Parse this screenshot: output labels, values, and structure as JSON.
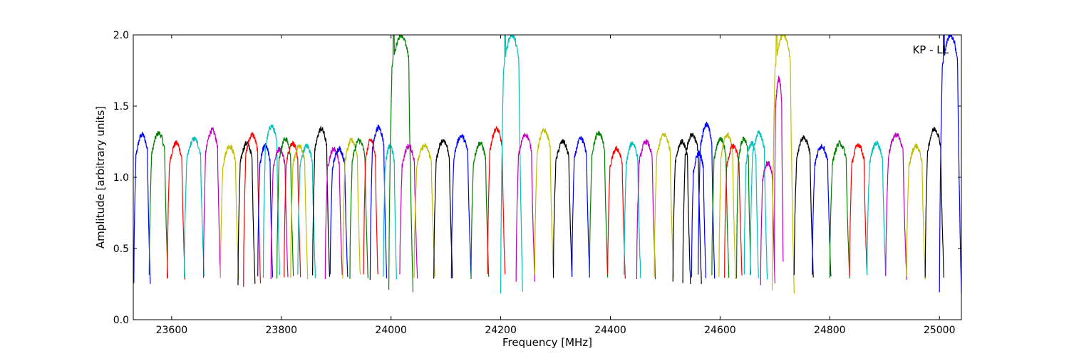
{
  "chart_data": {
    "type": "line",
    "title": "",
    "xlabel": "Frequency [MHz]",
    "ylabel": "Amplitude [arbitrary units]",
    "xlim": [
      23530,
      25040
    ],
    "ylim": [
      0.0,
      2.0
    ],
    "x_ticks": [
      23600,
      23800,
      24000,
      24200,
      24400,
      24600,
      24800,
      25000
    ],
    "x_tick_labels": [
      "23600",
      "23800",
      "24000",
      "24200",
      "24400",
      "24600",
      "24800",
      "25000"
    ],
    "y_ticks": [
      0.0,
      0.5,
      1.0,
      1.5,
      2.0
    ],
    "y_tick_labels": [
      "0.0",
      "0.5",
      "1.0",
      "1.5",
      "2.0"
    ],
    "grid": false,
    "annotation": "KP - LL",
    "colors": [
      "#0000ff",
      "#008000",
      "#ff0000",
      "#00bfbf",
      "#bf00bf",
      "#bfbf00",
      "#000000"
    ],
    "series": [
      {
        "x0": 23531,
        "x1": 23561,
        "peak": 1.3,
        "min": 0.25,
        "color": "#0000ff"
      },
      {
        "x0": 23559,
        "x1": 23593,
        "peak": 1.31,
        "min": 0.3,
        "color": "#008000"
      },
      {
        "x0": 23592,
        "x1": 23624,
        "peak": 1.24,
        "min": 0.3,
        "color": "#ff0000"
      },
      {
        "x0": 23623,
        "x1": 23659,
        "peak": 1.27,
        "min": 0.3,
        "color": "#00bfbf"
      },
      {
        "x0": 23658,
        "x1": 23689,
        "peak": 1.33,
        "min": 0.3,
        "color": "#bf00bf"
      },
      {
        "x0": 23689,
        "x1": 23722,
        "peak": 1.22,
        "min": 0.28,
        "color": "#bfbf00"
      },
      {
        "x0": 23721,
        "x1": 23752,
        "peak": 1.24,
        "min": 0.25,
        "color": "#000000"
      },
      {
        "x0": 23731,
        "x1": 23762,
        "peak": 1.3,
        "min": 0.25,
        "color": "#ff0000"
      },
      {
        "x0": 23757,
        "x1": 23784,
        "peak": 1.22,
        "min": 0.3,
        "color": "#0000ff"
      },
      {
        "x0": 23767,
        "x1": 23797,
        "peak": 1.36,
        "min": 0.3,
        "color": "#00bfbf"
      },
      {
        "x0": 23781,
        "x1": 23812,
        "peak": 1.2,
        "min": 0.3,
        "color": "#bf00bf"
      },
      {
        "x0": 23792,
        "x1": 23822,
        "peak": 1.27,
        "min": 0.3,
        "color": "#008000"
      },
      {
        "x0": 23805,
        "x1": 23835,
        "peak": 1.24,
        "min": 0.3,
        "color": "#ff0000"
      },
      {
        "x0": 23817,
        "x1": 23848,
        "peak": 1.22,
        "min": 0.3,
        "color": "#bfbf00"
      },
      {
        "x0": 23830,
        "x1": 23862,
        "peak": 1.22,
        "min": 0.3,
        "color": "#00bfbf"
      },
      {
        "x0": 23857,
        "x1": 23888,
        "peak": 1.34,
        "min": 0.3,
        "color": "#000000"
      },
      {
        "x0": 23880,
        "x1": 23911,
        "peak": 1.2,
        "min": 0.3,
        "color": "#bf00bf"
      },
      {
        "x0": 23889,
        "x1": 23921,
        "peak": 1.2,
        "min": 0.3,
        "color": "#0000ff"
      },
      {
        "x0": 23912,
        "x1": 23944,
        "peak": 1.26,
        "min": 0.3,
        "color": "#bfbf00"
      },
      {
        "x0": 23925,
        "x1": 23958,
        "peak": 1.26,
        "min": 0.3,
        "color": "#008000"
      },
      {
        "x0": 23950,
        "x1": 23976,
        "peak": 1.26,
        "min": 0.3,
        "color": "#ff0000"
      },
      {
        "x0": 23962,
        "x1": 23992,
        "peak": 1.35,
        "min": 0.3,
        "color": "#0000ff"
      },
      {
        "x0": 23986,
        "x1": 24010,
        "peak": 1.22,
        "min": 0.3,
        "color": "#00bfbf"
      },
      {
        "x0": 23996,
        "x1": 24040,
        "peak": 2.0,
        "min": 0.2,
        "color": "#008000"
      },
      {
        "x0": 24016,
        "x1": 24048,
        "peak": 1.22,
        "min": 0.3,
        "color": "#bf00bf"
      },
      {
        "x0": 24042,
        "x1": 24080,
        "peak": 1.22,
        "min": 0.3,
        "color": "#bfbf00"
      },
      {
        "x0": 24078,
        "x1": 24112,
        "peak": 1.26,
        "min": 0.3,
        "color": "#000000"
      },
      {
        "x0": 24110,
        "x1": 24146,
        "peak": 1.29,
        "min": 0.3,
        "color": "#0000ff"
      },
      {
        "x0": 24146,
        "x1": 24178,
        "peak": 1.24,
        "min": 0.3,
        "color": "#008000"
      },
      {
        "x0": 24176,
        "x1": 24208,
        "peak": 1.34,
        "min": 0.3,
        "color": "#ff0000"
      },
      {
        "x0": 24200,
        "x1": 24240,
        "peak": 2.0,
        "min": 0.18,
        "color": "#00bfbf"
      },
      {
        "x0": 24228,
        "x1": 24262,
        "peak": 1.3,
        "min": 0.28,
        "color": "#bf00bf"
      },
      {
        "x0": 24262,
        "x1": 24296,
        "peak": 1.33,
        "min": 0.3,
        "color": "#bfbf00"
      },
      {
        "x0": 24296,
        "x1": 24330,
        "peak": 1.25,
        "min": 0.3,
        "color": "#000000"
      },
      {
        "x0": 24330,
        "x1": 24362,
        "peak": 1.27,
        "min": 0.3,
        "color": "#0000ff"
      },
      {
        "x0": 24362,
        "x1": 24395,
        "peak": 1.31,
        "min": 0.3,
        "color": "#008000"
      },
      {
        "x0": 24395,
        "x1": 24427,
        "peak": 1.2,
        "min": 0.3,
        "color": "#ff0000"
      },
      {
        "x0": 24425,
        "x1": 24455,
        "peak": 1.24,
        "min": 0.3,
        "color": "#00bfbf"
      },
      {
        "x0": 24448,
        "x1": 24482,
        "peak": 1.25,
        "min": 0.3,
        "color": "#bf00bf"
      },
      {
        "x0": 24480,
        "x1": 24515,
        "peak": 1.3,
        "min": 0.3,
        "color": "#bfbf00"
      },
      {
        "x0": 24514,
        "x1": 24546,
        "peak": 1.25,
        "min": 0.25,
        "color": "#000000"
      },
      {
        "x0": 24532,
        "x1": 24566,
        "peak": 1.3,
        "min": 0.25,
        "color": "#000000"
      },
      {
        "x0": 24548,
        "x1": 24574,
        "peak": 1.17,
        "min": 0.3,
        "color": "#0000ff"
      },
      {
        "x0": 24560,
        "x1": 24590,
        "peak": 1.37,
        "min": 0.3,
        "color": "#0000ff"
      },
      {
        "x0": 24585,
        "x1": 24616,
        "peak": 1.27,
        "min": 0.3,
        "color": "#008000"
      },
      {
        "x0": 24598,
        "x1": 24628,
        "peak": 1.3,
        "min": 0.3,
        "color": "#bfbf00"
      },
      {
        "x0": 24608,
        "x1": 24640,
        "peak": 1.22,
        "min": 0.3,
        "color": "#ff0000"
      },
      {
        "x0": 24630,
        "x1": 24656,
        "peak": 1.27,
        "min": 0.3,
        "color": "#008000"
      },
      {
        "x0": 24644,
        "x1": 24670,
        "peak": 1.24,
        "min": 0.3,
        "color": "#00bfbf"
      },
      {
        "x0": 24655,
        "x1": 24686,
        "peak": 1.31,
        "min": 0.3,
        "color": "#00bfbf"
      },
      {
        "x0": 24674,
        "x1": 24700,
        "peak": 1.1,
        "min": 0.24,
        "color": "#bf00bf"
      },
      {
        "x0": 24695,
        "x1": 24735,
        "peak": 2.0,
        "min": 0.2,
        "color": "#bfbf00"
      },
      {
        "x0": 24699,
        "x1": 24715,
        "peak": 1.69,
        "min": 0.4,
        "color": "#bf00bf"
      },
      {
        "x0": 24735,
        "x1": 24770,
        "peak": 1.28,
        "min": 0.3,
        "color": "#000000"
      },
      {
        "x0": 24768,
        "x1": 24802,
        "peak": 1.22,
        "min": 0.3,
        "color": "#0000ff"
      },
      {
        "x0": 24800,
        "x1": 24836,
        "peak": 1.24,
        "min": 0.3,
        "color": "#008000"
      },
      {
        "x0": 24836,
        "x1": 24868,
        "peak": 1.23,
        "min": 0.3,
        "color": "#ff0000"
      },
      {
        "x0": 24868,
        "x1": 24902,
        "peak": 1.24,
        "min": 0.3,
        "color": "#00bfbf"
      },
      {
        "x0": 24902,
        "x1": 24940,
        "peak": 1.3,
        "min": 0.3,
        "color": "#bf00bf"
      },
      {
        "x0": 24940,
        "x1": 24974,
        "peak": 1.22,
        "min": 0.3,
        "color": "#bfbf00"
      },
      {
        "x0": 24974,
        "x1": 25008,
        "peak": 1.34,
        "min": 0.3,
        "color": "#000000"
      },
      {
        "x0": 25000,
        "x1": 25040,
        "peak": 2.0,
        "min": 0.18,
        "color": "#0000ff"
      }
    ]
  }
}
